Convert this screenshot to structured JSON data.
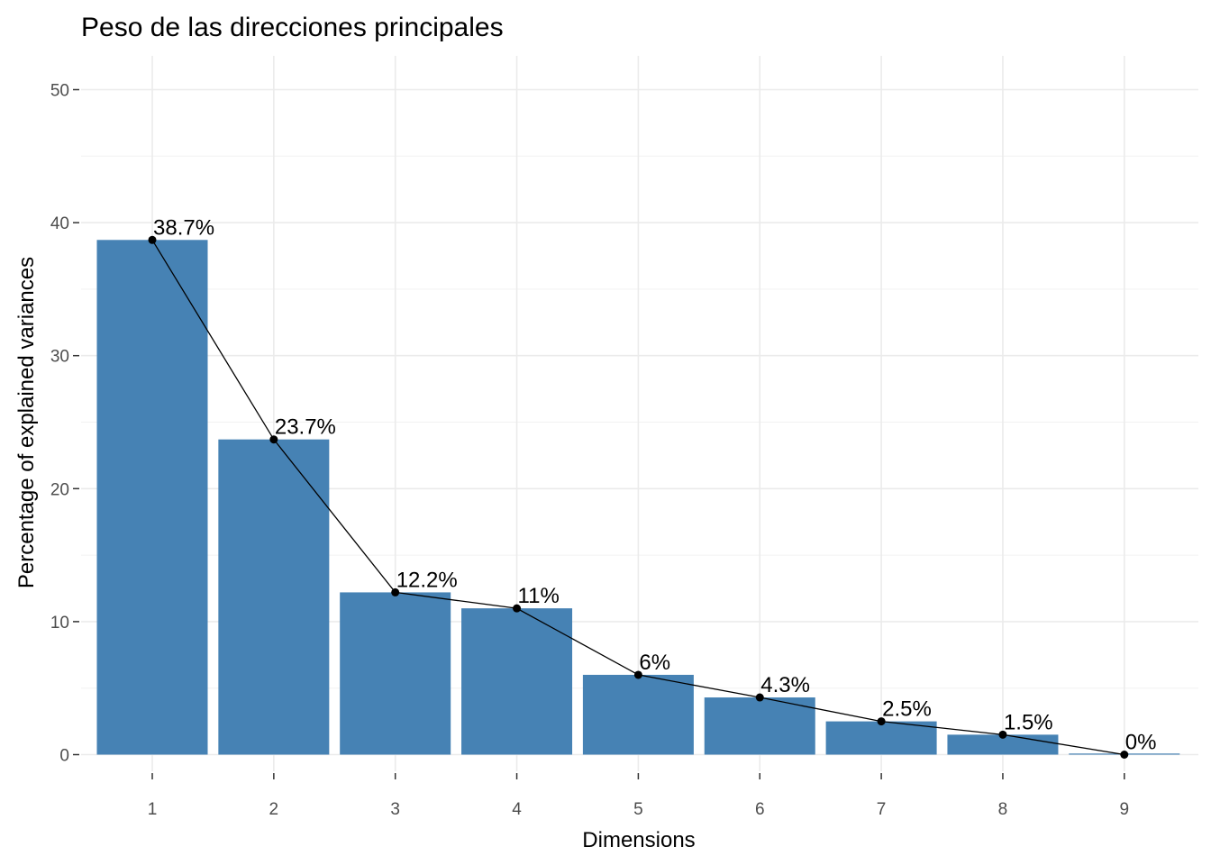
{
  "chart_data": {
    "type": "bar",
    "title": "Peso de las direcciones principales",
    "xlabel": "Dimensions",
    "ylabel": "Percentage of explained variances",
    "categories": [
      "1",
      "2",
      "3",
      "4",
      "5",
      "6",
      "7",
      "8",
      "9"
    ],
    "values": [
      38.7,
      23.7,
      12.2,
      11.0,
      6.0,
      4.3,
      2.5,
      1.5,
      0.0
    ],
    "value_labels": [
      "38.7%",
      "23.7%",
      "12.2%",
      "11%",
      "6%",
      "4.3%",
      "2.5%",
      "1.5%",
      "0%"
    ],
    "yticks": [
      0,
      10,
      20,
      30,
      40,
      50
    ],
    "ylim": [
      0,
      52.5
    ],
    "grid": true,
    "line_overlay": true,
    "colors": {
      "bar": "#4682b4",
      "line": "#000000",
      "point": "#000000"
    }
  }
}
